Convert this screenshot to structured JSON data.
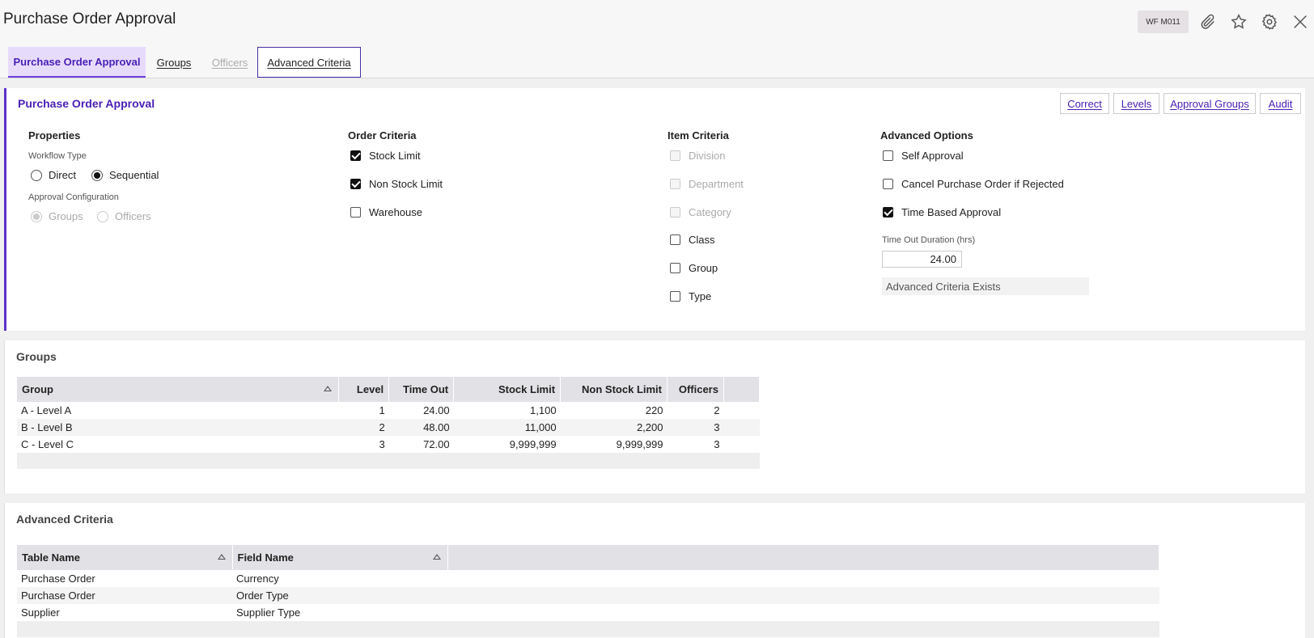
{
  "header": {
    "title": "Purchase Order Approval",
    "code": "WF M011"
  },
  "tabs": [
    {
      "label": "Purchase Order Approval"
    },
    {
      "label": "Groups"
    },
    {
      "label": "Officers"
    },
    {
      "label": "Advanced Criteria"
    }
  ],
  "main": {
    "title": "Purchase Order Approval",
    "buttons": {
      "correct": "Correct",
      "levels": "Levels",
      "approval_groups": "Approval Groups",
      "audit": "Audit"
    },
    "properties": {
      "heading": "Properties",
      "workflow_type_label": "Workflow Type",
      "direct": "Direct",
      "sequential": "Sequential",
      "selected_workflow": "Sequential",
      "approval_config_label": "Approval Configuration",
      "groups": "Groups",
      "officers": "Officers"
    },
    "order_criteria": {
      "heading": "Order Criteria",
      "stock_limit": "Stock Limit",
      "non_stock_limit": "Non Stock Limit",
      "warehouse": "Warehouse"
    },
    "item_criteria": {
      "heading": "Item Criteria",
      "division": "Division",
      "department": "Department",
      "category": "Category",
      "class": "Class",
      "group": "Group",
      "type": "Type"
    },
    "advanced_options": {
      "heading": "Advanced Options",
      "self_approval": "Self Approval",
      "cancel_po": "Cancel Purchase Order if Rejected",
      "time_based": "Time Based Approval",
      "timeout_label": "Time Out Duration (hrs)",
      "timeout_value": "24.00",
      "adv_exists": "Advanced Criteria Exists"
    }
  },
  "groups": {
    "title": "Groups",
    "columns": {
      "group": "Group",
      "level": "Level",
      "time_out": "Time Out",
      "stock_limit": "Stock Limit",
      "non_stock_limit": "Non Stock Limit",
      "officers": "Officers"
    },
    "rows": [
      {
        "group": "A - Level A",
        "level": "1",
        "time_out": "24.00",
        "stock_limit": "1,100",
        "non_stock_limit": "220",
        "officers": "2"
      },
      {
        "group": "B - Level B",
        "level": "2",
        "time_out": "48.00",
        "stock_limit": "11,000",
        "non_stock_limit": "2,200",
        "officers": "3"
      },
      {
        "group": "C - Level C",
        "level": "3",
        "time_out": "72.00",
        "stock_limit": "9,999,999",
        "non_stock_limit": "9,999,999",
        "officers": "3"
      }
    ]
  },
  "advanced_criteria": {
    "title": "Advanced Criteria",
    "columns": {
      "table_name": "Table Name",
      "field_name": "Field Name"
    },
    "rows": [
      {
        "table_name": "Purchase Order",
        "field_name": "Currency"
      },
      {
        "table_name": "Purchase Order",
        "field_name": "Order Type"
      },
      {
        "table_name": "Supplier",
        "field_name": "Supplier Type"
      }
    ]
  }
}
